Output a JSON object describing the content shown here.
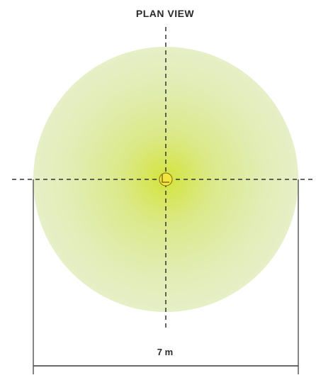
{
  "diagram": {
    "title": "PLAN VIEW",
    "dimension_label": "7 m",
    "canopy_color_center": "#d4e64a",
    "canopy_color_edge": "#e6f0c8",
    "trunk_color": "#f2e23a",
    "line_color": "#333333",
    "dimension_line_color": "#555555"
  }
}
